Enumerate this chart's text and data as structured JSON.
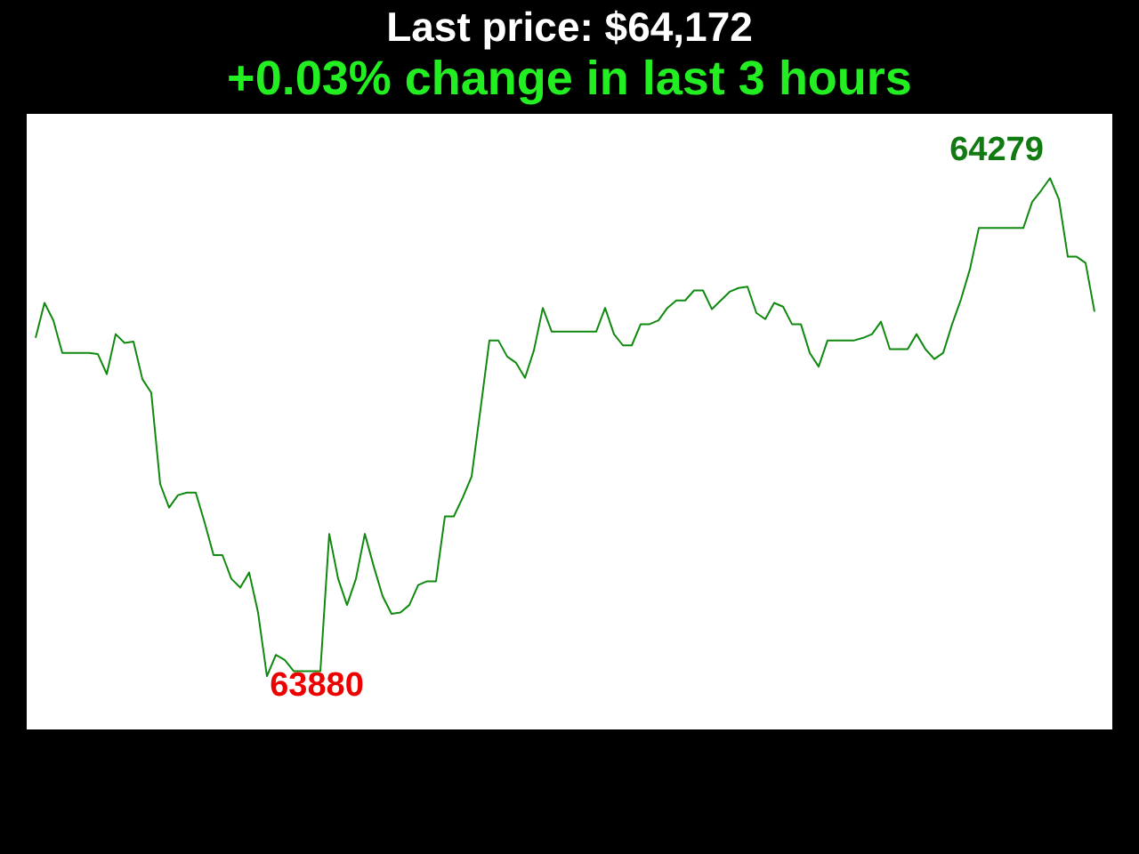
{
  "chart_data": {
    "type": "line",
    "title": "Last price: $64,172",
    "subtitle": "+0.03% change in last 3 hours",
    "categories": [
      null,
      null,
      null,
      null,
      null,
      null,
      null,
      null,
      null,
      null,
      null,
      null,
      null,
      null,
      null,
      null,
      null,
      null,
      null,
      null,
      null,
      null,
      null,
      null,
      null,
      null,
      null,
      null,
      null,
      null,
      null,
      null,
      null,
      null,
      null,
      null,
      null,
      null,
      null,
      null,
      null,
      null,
      null,
      null,
      null,
      null,
      null,
      null,
      null,
      null,
      null,
      null,
      null,
      null,
      null,
      null,
      null,
      null,
      null,
      null,
      null,
      null,
      null,
      null,
      null,
      null,
      null,
      null,
      null,
      null,
      null,
      null,
      null,
      null,
      null,
      null,
      null,
      null,
      null,
      null,
      null,
      null,
      null,
      null,
      null,
      null,
      null,
      null,
      null,
      null,
      null,
      null,
      null,
      null,
      null,
      null,
      null,
      null,
      null,
      null,
      null,
      null,
      null,
      null,
      null,
      null,
      null,
      null,
      null,
      null,
      null,
      null,
      null,
      null,
      null,
      null,
      null,
      null,
      null,
      null
    ],
    "series": [
      {
        "color": "#0f8a0f",
        "values": [
          64151,
          64179,
          64165,
          64139,
          64139,
          64139,
          64139,
          64138,
          64122,
          64154,
          64147,
          64148,
          64118,
          64107,
          64034,
          64015,
          64025,
          64027,
          64027,
          64003,
          63977,
          63977,
          63958,
          63951,
          63963,
          63931,
          63880,
          63897,
          63893,
          63884,
          63884,
          63884,
          63884,
          63994,
          63958,
          63937,
          63958,
          63994,
          63968,
          63944,
          63930,
          63931,
          63937,
          63953,
          63956,
          63956,
          64008,
          64008,
          64023,
          64040,
          64094,
          64149,
          64149,
          64136,
          64131,
          64119,
          64141,
          64175,
          64156,
          64156,
          64156,
          64156,
          64156,
          64156,
          64175,
          64154,
          64145,
          64145,
          64162,
          64162,
          64165,
          64175,
          64181,
          64181,
          64189,
          64189,
          64174,
          64181,
          64188,
          64191,
          64192,
          64171,
          64166,
          64179,
          64176,
          64162,
          64162,
          64139,
          64128,
          64149,
          64149,
          64149,
          64149,
          64151,
          64154,
          64164,
          64142,
          64142,
          64142,
          64154,
          64142,
          64134,
          64139,
          64162,
          64182,
          64206,
          64239,
          64239,
          64239,
          64239,
          64239,
          64239,
          64260,
          64269,
          64279,
          64262,
          64216,
          64216,
          64211,
          64172
        ],
        "value_labels": [
          null,
          null,
          null,
          null,
          null,
          null,
          null,
          null,
          null,
          null,
          null,
          null,
          null,
          null,
          null,
          null,
          null,
          null,
          null,
          null,
          null,
          null,
          null,
          null,
          null,
          null,
          "63880",
          null,
          null,
          null,
          null,
          null,
          null,
          null,
          null,
          null,
          null,
          null,
          null,
          null,
          null,
          null,
          null,
          null,
          null,
          null,
          null,
          null,
          null,
          null,
          null,
          null,
          null,
          null,
          null,
          null,
          null,
          null,
          null,
          null,
          null,
          null,
          null,
          null,
          null,
          null,
          null,
          null,
          null,
          null,
          null,
          null,
          null,
          null,
          null,
          null,
          null,
          null,
          null,
          null,
          null,
          null,
          null,
          null,
          null,
          null,
          null,
          null,
          null,
          null,
          null,
          null,
          null,
          null,
          null,
          null,
          null,
          null,
          null,
          null,
          null,
          null,
          null,
          null,
          null,
          null,
          null,
          null,
          null,
          null,
          null,
          null,
          null,
          null,
          "64279",
          null,
          null,
          null,
          null,
          null
        ]
      }
    ]
  }
}
